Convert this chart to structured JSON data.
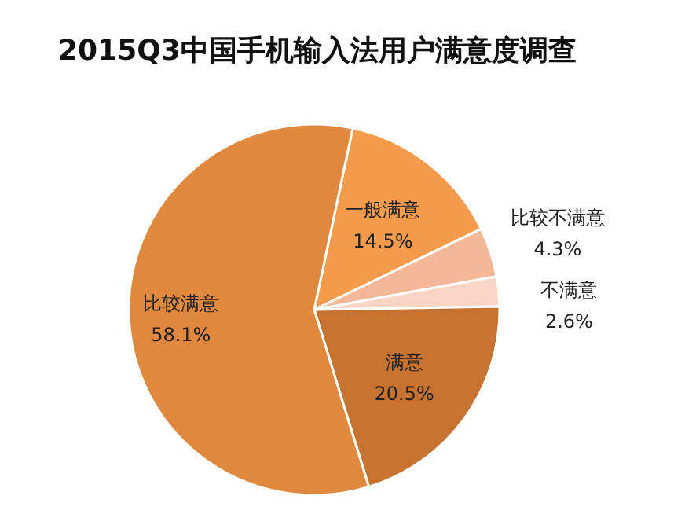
{
  "chart_data": {
    "type": "pie",
    "title": "2015Q3中国手机输入法用户满意度调查",
    "categories": [
      "一般满意",
      "比较不满意",
      "不满意",
      "满意",
      "比较满意"
    ],
    "values": [
      14.5,
      4.3,
      2.6,
      20.5,
      58.1
    ],
    "colors": [
      "#f39a4b",
      "#f4b899",
      "#f8d5c4",
      "#c8722f",
      "#e0883e"
    ],
    "value_labels": [
      "14.5%",
      "4.3%",
      "2.6%",
      "20.5%",
      "58.1%"
    ]
  }
}
